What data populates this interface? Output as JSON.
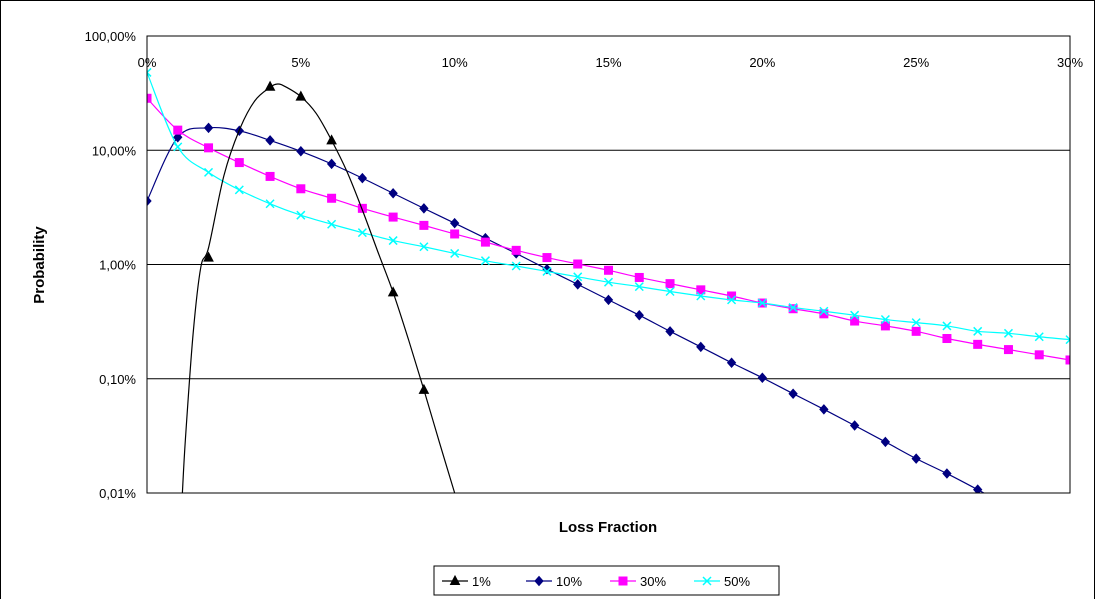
{
  "chart_data": {
    "type": "line",
    "xlabel": "Loss Fraction",
    "ylabel": "Probability",
    "y_scale": "log",
    "xlim": [
      0,
      0.3
    ],
    "ylim": [
      0.0001,
      1.0
    ],
    "x_ticks": [
      0,
      0.05,
      0.1,
      0.15,
      0.2,
      0.25,
      0.3
    ],
    "x_tick_labels": [
      "0%",
      "5%",
      "10%",
      "15%",
      "20%",
      "25%",
      "30%"
    ],
    "y_ticks": [
      0.0001,
      0.001,
      0.01,
      0.1,
      1.0
    ],
    "y_tick_labels": [
      "0,01%",
      "0,10%",
      "1,00%",
      "10,00%",
      "100,00%"
    ],
    "grid": "horizontal",
    "legend_position": "bottom",
    "series": [
      {
        "name": "1%",
        "color": "#000000",
        "marker": "triangle",
        "x": [
          0.01,
          0.02,
          0.03,
          0.04,
          0.05,
          0.06,
          0.07,
          0.08,
          0.09,
          0.1
        ],
        "values": [
          0.0001,
          0.0115,
          0.15,
          0.36,
          0.295,
          0.122,
          0.03,
          0.0057,
          0.0008,
          0.0001
        ],
        "curve_x": [
          0.0115,
          0.0125,
          0.015,
          0.0175,
          0.02,
          0.025,
          0.03,
          0.035,
          0.04,
          0.0425,
          0.045,
          0.05,
          0.055,
          0.06,
          0.065,
          0.07,
          0.075,
          0.08,
          0.085,
          0.09,
          0.095,
          0.1
        ],
        "curve_values": [
          0.0001,
          0.0003,
          0.0025,
          0.0095,
          0.014,
          0.06,
          0.15,
          0.27,
          0.355,
          0.38,
          0.36,
          0.295,
          0.21,
          0.122,
          0.065,
          0.03,
          0.013,
          0.0057,
          0.0022,
          0.0008,
          0.00028,
          0.0001
        ],
        "marker_x": [
          0.02,
          0.04,
          0.05,
          0.06,
          0.08,
          0.09
        ],
        "marker_values": [
          0.0115,
          0.36,
          0.295,
          0.122,
          0.0057,
          0.0008
        ]
      },
      {
        "name": "10%",
        "color": "#000080",
        "marker": "diamond",
        "x": [
          0,
          0.01,
          0.02,
          0.03,
          0.04,
          0.05,
          0.06,
          0.07,
          0.08,
          0.09,
          0.1,
          0.11,
          0.12,
          0.13,
          0.14,
          0.15,
          0.16,
          0.17,
          0.18,
          0.19,
          0.2,
          0.21,
          0.22,
          0.23,
          0.24,
          0.25,
          0.26,
          0.27,
          0.275
        ],
        "values": [
          0.036,
          0.13,
          0.157,
          0.148,
          0.122,
          0.098,
          0.076,
          0.057,
          0.042,
          0.031,
          0.023,
          0.017,
          0.0125,
          0.0091,
          0.0067,
          0.0049,
          0.0036,
          0.0026,
          0.0019,
          0.00138,
          0.00102,
          0.00074,
          0.00054,
          0.00039,
          0.00028,
          0.0002,
          0.000148,
          0.000107,
          9e-05
        ],
        "curve_x": [],
        "curve_values": [],
        "marker_x": [
          0,
          0.01,
          0.02,
          0.03,
          0.04,
          0.05,
          0.06,
          0.07,
          0.08,
          0.09,
          0.1,
          0.11,
          0.12,
          0.13,
          0.14,
          0.15,
          0.16,
          0.17,
          0.18,
          0.19,
          0.2,
          0.21,
          0.22,
          0.23,
          0.24,
          0.25,
          0.26,
          0.27
        ],
        "marker_values": [
          0.036,
          0.13,
          0.157,
          0.148,
          0.122,
          0.098,
          0.076,
          0.057,
          0.042,
          0.031,
          0.023,
          0.017,
          0.0125,
          0.0091,
          0.0067,
          0.0049,
          0.0036,
          0.0026,
          0.0019,
          0.00138,
          0.00102,
          0.00074,
          0.00054,
          0.00039,
          0.00028,
          0.0002,
          0.000148,
          0.000107
        ]
      },
      {
        "name": "30%",
        "color": "#FF00FF",
        "marker": "square",
        "x": [
          0,
          0.01,
          0.02,
          0.03,
          0.04,
          0.05,
          0.06,
          0.07,
          0.08,
          0.09,
          0.1,
          0.11,
          0.12,
          0.13,
          0.14,
          0.15,
          0.16,
          0.17,
          0.18,
          0.19,
          0.2,
          0.21,
          0.22,
          0.23,
          0.24,
          0.25,
          0.26,
          0.27,
          0.28,
          0.29,
          0.3
        ],
        "values": [
          0.285,
          0.15,
          0.105,
          0.078,
          0.059,
          0.046,
          0.038,
          0.031,
          0.026,
          0.022,
          0.0185,
          0.0157,
          0.0133,
          0.0115,
          0.0101,
          0.0089,
          0.0077,
          0.0068,
          0.006,
          0.0053,
          0.0046,
          0.0041,
          0.0037,
          0.0032,
          0.0029,
          0.0026,
          0.00225,
          0.002,
          0.0018,
          0.00162,
          0.00146
        ],
        "curve_x": [],
        "curve_values": [],
        "marker_x": [
          0,
          0.01,
          0.02,
          0.03,
          0.04,
          0.05,
          0.06,
          0.07,
          0.08,
          0.09,
          0.1,
          0.11,
          0.12,
          0.13,
          0.14,
          0.15,
          0.16,
          0.17,
          0.18,
          0.19,
          0.2,
          0.21,
          0.22,
          0.23,
          0.24,
          0.25,
          0.26,
          0.27,
          0.28,
          0.29,
          0.3
        ],
        "marker_values": [
          0.285,
          0.15,
          0.105,
          0.078,
          0.059,
          0.046,
          0.038,
          0.031,
          0.026,
          0.022,
          0.0185,
          0.0157,
          0.0133,
          0.0115,
          0.0101,
          0.0089,
          0.0077,
          0.0068,
          0.006,
          0.0053,
          0.0046,
          0.0041,
          0.0037,
          0.0032,
          0.0029,
          0.0026,
          0.00225,
          0.002,
          0.0018,
          0.00162,
          0.00146
        ]
      },
      {
        "name": "50%",
        "color": "#00FFFF",
        "marker": "x",
        "x": [
          0,
          0.01,
          0.02,
          0.03,
          0.04,
          0.05,
          0.06,
          0.07,
          0.08,
          0.09,
          0.1,
          0.11,
          0.12,
          0.13,
          0.14,
          0.15,
          0.16,
          0.17,
          0.18,
          0.19,
          0.2,
          0.21,
          0.22,
          0.23,
          0.24,
          0.25,
          0.26,
          0.27,
          0.28,
          0.29,
          0.3
        ],
        "values": [
          0.48,
          0.107,
          0.064,
          0.045,
          0.034,
          0.027,
          0.0225,
          0.019,
          0.0162,
          0.0143,
          0.0125,
          0.0108,
          0.0097,
          0.0087,
          0.0078,
          0.007,
          0.0064,
          0.0058,
          0.0053,
          0.0049,
          0.0046,
          0.0042,
          0.0039,
          0.0036,
          0.0033,
          0.0031,
          0.0029,
          0.0026,
          0.0025,
          0.00233,
          0.0022
        ],
        "curve_x": [],
        "curve_values": [],
        "marker_x": [
          0,
          0.01,
          0.02,
          0.03,
          0.04,
          0.05,
          0.06,
          0.07,
          0.08,
          0.09,
          0.1,
          0.11,
          0.12,
          0.13,
          0.14,
          0.15,
          0.16,
          0.17,
          0.18,
          0.19,
          0.2,
          0.21,
          0.22,
          0.23,
          0.24,
          0.25,
          0.26,
          0.27,
          0.28,
          0.29,
          0.3
        ],
        "marker_values": [
          0.48,
          0.107,
          0.064,
          0.045,
          0.034,
          0.027,
          0.0225,
          0.019,
          0.0162,
          0.0143,
          0.0125,
          0.0108,
          0.0097,
          0.0087,
          0.0078,
          0.007,
          0.0064,
          0.0058,
          0.0053,
          0.0049,
          0.0046,
          0.0042,
          0.0039,
          0.0036,
          0.0033,
          0.0031,
          0.0029,
          0.0026,
          0.0025,
          0.00233,
          0.0022
        ]
      }
    ]
  }
}
